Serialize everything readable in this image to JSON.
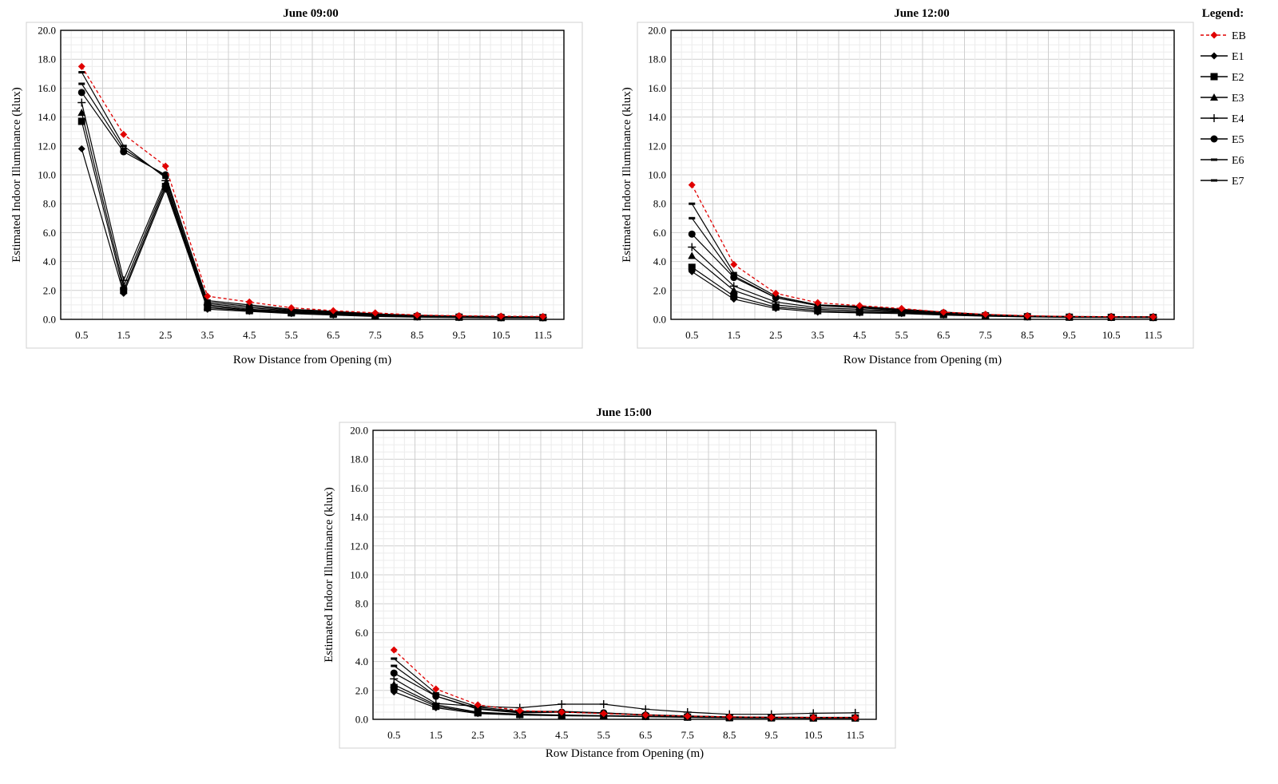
{
  "legend": {
    "title": "Legend:",
    "items": [
      {
        "label": "EB",
        "marker": "diamond",
        "color": "#e00000",
        "dash": true
      },
      {
        "label": "E1",
        "marker": "diamond",
        "color": "#000000",
        "dash": false
      },
      {
        "label": "E2",
        "marker": "square",
        "color": "#000000",
        "dash": false
      },
      {
        "label": "E3",
        "marker": "triangle",
        "color": "#000000",
        "dash": false
      },
      {
        "label": "E4",
        "marker": "plus",
        "color": "#000000",
        "dash": false
      },
      {
        "label": "E5",
        "marker": "circle",
        "color": "#000000",
        "dash": false
      },
      {
        "label": "E6",
        "marker": "dash",
        "color": "#000000",
        "dash": false
      },
      {
        "label": "E7",
        "marker": "dash",
        "color": "#000000",
        "dash": false
      }
    ]
  },
  "chart_data": [
    {
      "type": "line",
      "title": "June 09:00",
      "xlabel": "Row Distance from Opening (m)",
      "ylabel": "Estimated Indoor Illuminance (klux)",
      "ylim": [
        0,
        20
      ],
      "yticks": [
        "0.0",
        "2.0",
        "4.0",
        "6.0",
        "8.0",
        "10.0",
        "12.0",
        "14.0",
        "16.0",
        "18.0",
        "20.0"
      ],
      "x": [
        "0.5",
        "1.5",
        "2.5",
        "3.5",
        "4.5",
        "5.5",
        "6.5",
        "7.5",
        "8.5",
        "9.5",
        "10.5",
        "11.5"
      ],
      "series": [
        {
          "name": "EB",
          "values": [
            17.5,
            12.8,
            10.6,
            1.6,
            1.2,
            0.8,
            0.6,
            0.45,
            0.3,
            0.25,
            0.22,
            0.2
          ]
        },
        {
          "name": "E1",
          "values": [
            11.8,
            1.8,
            9.0,
            0.7,
            0.55,
            0.4,
            0.3,
            0.2,
            0.15,
            0.12,
            0.1,
            0.1
          ]
        },
        {
          "name": "E2",
          "values": [
            13.7,
            2.0,
            9.2,
            0.8,
            0.6,
            0.45,
            0.35,
            0.25,
            0.18,
            0.15,
            0.12,
            0.12
          ]
        },
        {
          "name": "E3",
          "values": [
            14.3,
            2.3,
            9.4,
            0.9,
            0.65,
            0.5,
            0.38,
            0.28,
            0.2,
            0.16,
            0.14,
            0.13
          ]
        },
        {
          "name": "E4",
          "values": [
            15.0,
            2.7,
            9.6,
            1.0,
            0.7,
            0.55,
            0.4,
            0.3,
            0.22,
            0.18,
            0.15,
            0.14
          ]
        },
        {
          "name": "E5",
          "values": [
            15.7,
            11.6,
            10.0,
            1.1,
            0.8,
            0.6,
            0.45,
            0.32,
            0.24,
            0.2,
            0.17,
            0.15
          ]
        },
        {
          "name": "E6",
          "values": [
            16.3,
            11.8,
            9.9,
            1.2,
            0.9,
            0.65,
            0.5,
            0.35,
            0.26,
            0.22,
            0.18,
            0.16
          ]
        },
        {
          "name": "E7",
          "values": [
            17.1,
            12.0,
            9.8,
            1.3,
            1.0,
            0.7,
            0.55,
            0.38,
            0.28,
            0.23,
            0.19,
            0.17
          ]
        }
      ]
    },
    {
      "type": "line",
      "title": "June 12:00",
      "xlabel": "Row Distance from Opening (m)",
      "ylabel": "Estimated Indoor Illuminance (klux)",
      "ylim": [
        0,
        20
      ],
      "yticks": [
        "0.0",
        "2.0",
        "4.0",
        "6.0",
        "8.0",
        "10.0",
        "12.0",
        "14.0",
        "16.0",
        "18.0",
        "20.0"
      ],
      "x": [
        "0.5",
        "1.5",
        "2.5",
        "3.5",
        "4.5",
        "5.5",
        "6.5",
        "7.5",
        "8.5",
        "9.5",
        "10.5",
        "11.5"
      ],
      "series": [
        {
          "name": "EB",
          "values": [
            9.3,
            3.8,
            1.8,
            1.15,
            0.95,
            0.75,
            0.5,
            0.35,
            0.25,
            0.2,
            0.18,
            0.17
          ]
        },
        {
          "name": "E1",
          "values": [
            3.3,
            1.4,
            0.75,
            0.5,
            0.45,
            0.4,
            0.3,
            0.22,
            0.17,
            0.14,
            0.13,
            0.12
          ]
        },
        {
          "name": "E2",
          "values": [
            3.6,
            1.6,
            0.85,
            0.6,
            0.5,
            0.45,
            0.33,
            0.24,
            0.18,
            0.15,
            0.14,
            0.13
          ]
        },
        {
          "name": "E3",
          "values": [
            4.4,
            2.0,
            1.0,
            0.7,
            0.6,
            0.5,
            0.36,
            0.26,
            0.19,
            0.16,
            0.15,
            0.14
          ]
        },
        {
          "name": "E4",
          "values": [
            5.0,
            2.3,
            1.2,
            0.8,
            0.7,
            0.55,
            0.4,
            0.28,
            0.2,
            0.17,
            0.16,
            0.15
          ]
        },
        {
          "name": "E5",
          "values": [
            5.9,
            2.9,
            1.5,
            0.95,
            0.8,
            0.6,
            0.45,
            0.3,
            0.22,
            0.18,
            0.17,
            0.16
          ]
        },
        {
          "name": "E6",
          "values": [
            7.0,
            3.0,
            1.5,
            0.95,
            0.85,
            0.65,
            0.48,
            0.32,
            0.23,
            0.19,
            0.18,
            0.17
          ]
        },
        {
          "name": "E7",
          "values": [
            8.0,
            3.2,
            1.6,
            1.0,
            0.9,
            0.7,
            0.5,
            0.34,
            0.24,
            0.2,
            0.18,
            0.17
          ]
        }
      ]
    },
    {
      "type": "line",
      "title": "June 15:00",
      "xlabel": "Row Distance from Opening (m)",
      "ylabel": "Estimated Indoor Illuminance (klux)",
      "ylim": [
        0,
        20
      ],
      "yticks": [
        "0.0",
        "2.0",
        "4.0",
        "6.0",
        "8.0",
        "10.0",
        "12.0",
        "14.0",
        "16.0",
        "18.0",
        "20.0"
      ],
      "x": [
        "0.5",
        "1.5",
        "2.5",
        "3.5",
        "4.5",
        "5.5",
        "6.5",
        "7.5",
        "8.5",
        "9.5",
        "10.5",
        "11.5"
      ],
      "series": [
        {
          "name": "EB",
          "values": [
            4.8,
            2.1,
            1.0,
            0.6,
            0.5,
            0.4,
            0.3,
            0.22,
            0.17,
            0.14,
            0.13,
            0.12
          ]
        },
        {
          "name": "E1",
          "values": [
            1.9,
            0.8,
            0.4,
            0.3,
            0.25,
            0.22,
            0.18,
            0.14,
            0.1,
            0.09,
            0.08,
            0.08
          ]
        },
        {
          "name": "E2",
          "values": [
            2.2,
            0.9,
            0.45,
            0.33,
            0.28,
            0.24,
            0.2,
            0.15,
            0.11,
            0.1,
            0.09,
            0.09
          ]
        },
        {
          "name": "E3",
          "values": [
            2.4,
            1.0,
            0.5,
            0.36,
            0.3,
            0.26,
            0.21,
            0.16,
            0.12,
            0.11,
            0.1,
            0.1
          ]
        },
        {
          "name": "E4",
          "values": [
            2.8,
            1.1,
            0.9,
            0.8,
            1.05,
            1.05,
            0.7,
            0.5,
            0.35,
            0.35,
            0.42,
            0.45
          ]
        },
        {
          "name": "E5",
          "values": [
            3.2,
            1.6,
            0.7,
            0.45,
            0.5,
            0.45,
            0.3,
            0.22,
            0.15,
            0.13,
            0.12,
            0.12
          ]
        },
        {
          "name": "E6",
          "values": [
            3.7,
            1.6,
            0.75,
            0.5,
            0.5,
            0.42,
            0.3,
            0.22,
            0.16,
            0.14,
            0.13,
            0.13
          ]
        },
        {
          "name": "E7",
          "values": [
            4.2,
            1.8,
            0.85,
            0.55,
            0.55,
            0.45,
            0.32,
            0.24,
            0.17,
            0.15,
            0.14,
            0.14
          ]
        }
      ]
    }
  ]
}
